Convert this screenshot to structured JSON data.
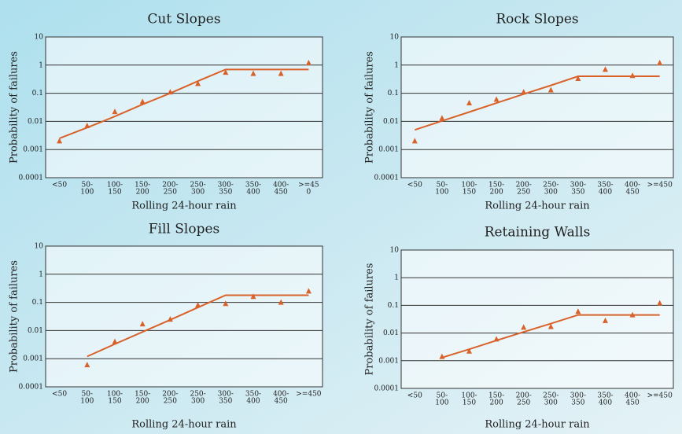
{
  "chart_data": [
    {
      "type": "line",
      "title": "Cut Slopes",
      "xlabel": "Rolling 24-hour rain",
      "ylabel": "Probability of failures",
      "categories": [
        [
          "<50"
        ],
        [
          "50-",
          "100"
        ],
        [
          "100-",
          "150"
        ],
        [
          "150-",
          "200"
        ],
        [
          "200-",
          "250"
        ],
        [
          "250-",
          "300"
        ],
        [
          "300-",
          "350"
        ],
        [
          "350-",
          "400"
        ],
        [
          "400-",
          "450"
        ],
        [
          ">=45",
          "0"
        ]
      ],
      "log_scale": true,
      "grid": true,
      "ylim": [
        0.0001,
        10
      ],
      "yticks": [
        0.0001,
        0.001,
        0.01,
        0.1,
        1,
        10
      ],
      "series": [
        {
          "color": "#d9622b",
          "marker": "triangle",
          "values": [
            0.002,
            0.007,
            0.022,
            0.05,
            0.11,
            0.22,
            0.55,
            0.5,
            0.5,
            1.2
          ]
        },
        {
          "color": "#d9622b",
          "marker": "none",
          "values": [
            0.0025,
            0.006,
            0.015,
            0.04,
            0.1,
            0.27,
            0.7,
            0.7,
            0.7,
            0.7
          ]
        }
      ]
    },
    {
      "type": "line",
      "title": "Rock Slopes",
      "xlabel": "Rolling 24-hour rain",
      "ylabel": "Probability of failures",
      "categories": [
        [
          "<50"
        ],
        [
          "50-",
          "100"
        ],
        [
          "100-",
          "150"
        ],
        [
          "150-",
          "200"
        ],
        [
          "200-",
          "250"
        ],
        [
          "250-",
          "300"
        ],
        [
          "300-",
          "350"
        ],
        [
          "350-",
          "400"
        ],
        [
          "400-",
          "450"
        ],
        [
          ">=450"
        ]
      ],
      "log_scale": true,
      "grid": true,
      "ylim": [
        0.0001,
        10
      ],
      "yticks": [
        0.0001,
        0.001,
        0.01,
        0.1,
        1,
        10
      ],
      "series": [
        {
          "color": "#d9622b",
          "marker": "triangle",
          "values": [
            0.002,
            0.013,
            0.045,
            0.06,
            0.11,
            0.13,
            0.33,
            0.7,
            0.42,
            1.2
          ]
        },
        {
          "color": "#d9622b",
          "marker": "none",
          "values": [
            0.005,
            0.0104,
            0.0215,
            0.045,
            0.093,
            0.19,
            0.4,
            0.4,
            0.4,
            0.4
          ]
        }
      ]
    },
    {
      "type": "line",
      "title": "Fill Slopes",
      "xlabel": "Rolling 24-hour rain",
      "ylabel": "Probability of failures",
      "categories": [
        [
          "<50"
        ],
        [
          "50-",
          "100"
        ],
        [
          "100-",
          "150"
        ],
        [
          "150-",
          "200"
        ],
        [
          "200-",
          "250"
        ],
        [
          "250-",
          "300"
        ],
        [
          "300-",
          "350"
        ],
        [
          "350-",
          "400"
        ],
        [
          "400-",
          "450"
        ],
        [
          ">=450"
        ]
      ],
      "log_scale": true,
      "grid": true,
      "ylim": [
        0.0001,
        10
      ],
      "yticks": [
        0.0001,
        0.001,
        0.01,
        0.1,
        1,
        10
      ],
      "series": [
        {
          "color": "#d9622b",
          "marker": "triangle",
          "values": [
            null,
            0.0006,
            0.004,
            0.017,
            0.025,
            0.08,
            0.09,
            0.16,
            0.1,
            0.25
          ]
        },
        {
          "color": "#d9622b",
          "marker": "none",
          "values": [
            null,
            0.0012,
            0.0033,
            0.0089,
            0.024,
            0.066,
            0.18,
            0.18,
            0.18,
            0.18
          ]
        }
      ]
    },
    {
      "type": "line",
      "title": "Retaining Walls",
      "xlabel": "Rolling 24-hour rain",
      "ylabel": "Probability of failures",
      "categories": [
        [
          "<50"
        ],
        [
          "50-",
          "100"
        ],
        [
          "100-",
          "150"
        ],
        [
          "150-",
          "200"
        ],
        [
          "200-",
          "250"
        ],
        [
          "250-",
          "300"
        ],
        [
          "300-",
          "350"
        ],
        [
          "350-",
          "400"
        ],
        [
          "400-",
          "450"
        ],
        [
          ">=450"
        ]
      ],
      "log_scale": true,
      "grid": true,
      "ylim": [
        0.0001,
        10
      ],
      "yticks": [
        0.0001,
        0.001,
        0.01,
        0.1,
        1,
        10
      ],
      "series": [
        {
          "color": "#d9622b",
          "marker": "triangle",
          "values": [
            null,
            0.0014,
            0.0022,
            0.006,
            0.016,
            0.017,
            0.06,
            0.028,
            0.045,
            0.12
          ]
        },
        {
          "color": "#d9622b",
          "marker": "none",
          "values": [
            null,
            0.0013,
            0.0026,
            0.0054,
            0.011,
            0.022,
            0.045,
            0.045,
            0.045,
            0.045
          ]
        }
      ]
    }
  ]
}
